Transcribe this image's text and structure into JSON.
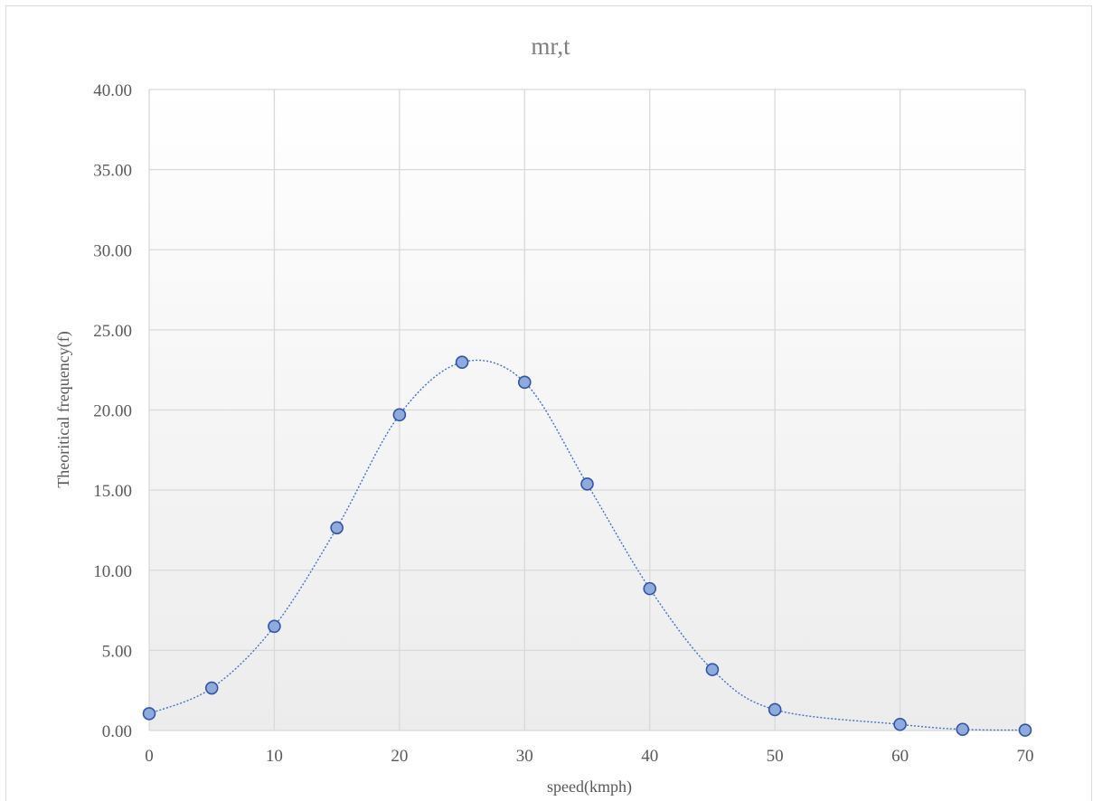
{
  "chart_data": {
    "type": "scatter",
    "title": "mr,t",
    "xlabel": "speed(kmph)",
    "ylabel": "Theoritical frequency(f)",
    "xlim": [
      0,
      70
    ],
    "ylim": [
      0,
      40
    ],
    "x_ticks": [
      "0",
      "10",
      "20",
      "30",
      "40",
      "50",
      "60",
      "70"
    ],
    "y_ticks": [
      "0.00",
      "5.00",
      "10.00",
      "15.00",
      "20.00",
      "25.00",
      "30.00",
      "35.00",
      "40.00"
    ],
    "grid": true,
    "legend": "none",
    "smoothed_line": true,
    "colors": {
      "marker_fill": "#8faadc",
      "marker_edge": "#2f55a4",
      "line": "#4472c4"
    },
    "x": [
      0,
      5,
      10,
      15,
      20,
      25,
      30,
      35,
      40,
      45,
      50,
      60,
      65,
      70
    ],
    "y": [
      1.05,
      2.65,
      6.5,
      12.65,
      19.7,
      22.98,
      21.73,
      15.38,
      8.85,
      3.8,
      1.3,
      0.38,
      0.07,
      0.02
    ]
  }
}
